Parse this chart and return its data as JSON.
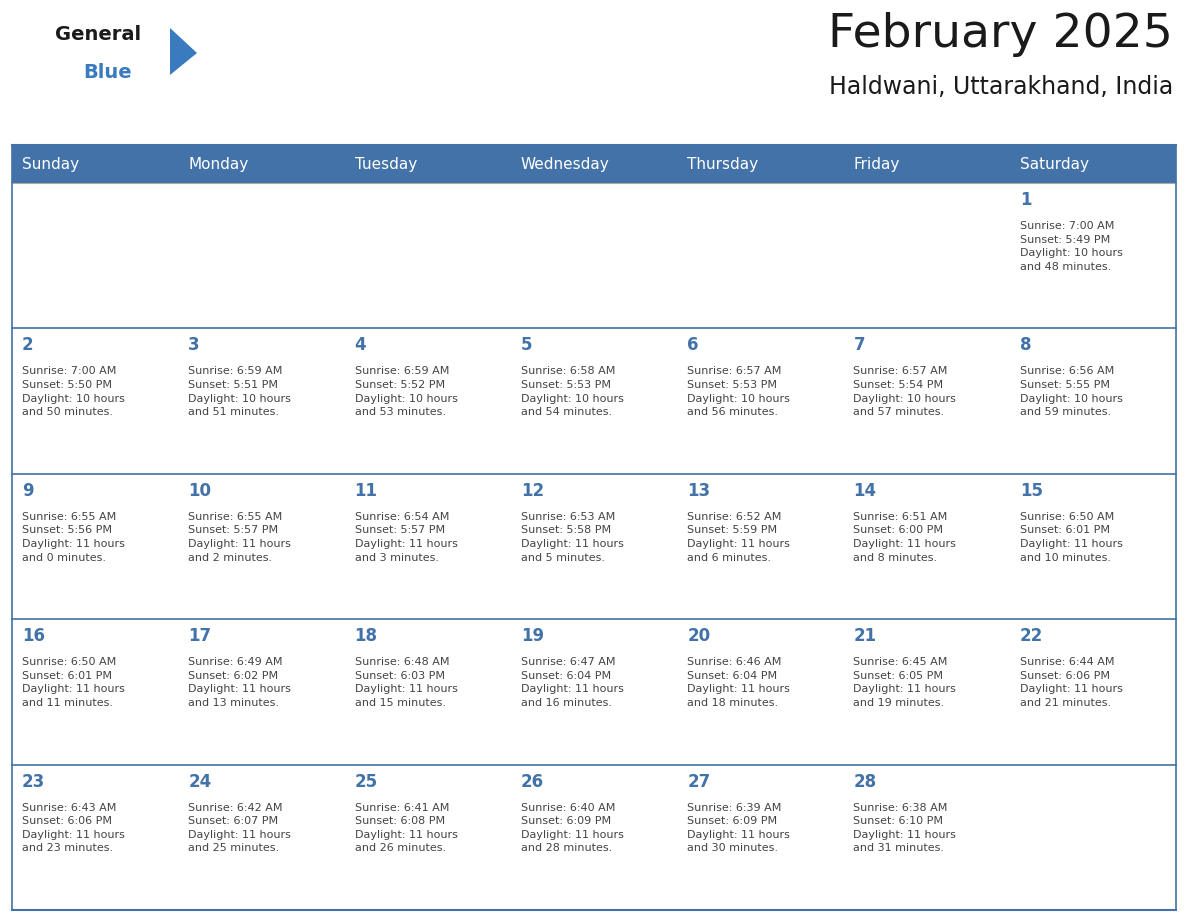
{
  "title": "February 2025",
  "subtitle": "Haldwani, Uttarakhand, India",
  "days_of_week": [
    "Sunday",
    "Monday",
    "Tuesday",
    "Wednesday",
    "Thursday",
    "Friday",
    "Saturday"
  ],
  "header_bg": "#4272a8",
  "header_text_color": "#ffffff",
  "cell_bg": "#ffffff",
  "border_color": "#4272a8",
  "day_number_color": "#4272a8",
  "info_text_color": "#444444",
  "title_color": "#1a1a1a",
  "subtitle_color": "#1a1a1a",
  "logo_general_color": "#1a1a1a",
  "logo_blue_color": "#3a7abf",
  "calendar_data": [
    [
      null,
      null,
      null,
      null,
      null,
      null,
      1
    ],
    [
      2,
      3,
      4,
      5,
      6,
      7,
      8
    ],
    [
      9,
      10,
      11,
      12,
      13,
      14,
      15
    ],
    [
      16,
      17,
      18,
      19,
      20,
      21,
      22
    ],
    [
      23,
      24,
      25,
      26,
      27,
      28,
      null
    ]
  ],
  "sun_set_rise": {
    "1": {
      "sunrise": "7:00 AM",
      "sunset": "5:49 PM",
      "daylight_h": "10 hours",
      "daylight_m": "and 48 minutes."
    },
    "2": {
      "sunrise": "7:00 AM",
      "sunset": "5:50 PM",
      "daylight_h": "10 hours",
      "daylight_m": "and 50 minutes."
    },
    "3": {
      "sunrise": "6:59 AM",
      "sunset": "5:51 PM",
      "daylight_h": "10 hours",
      "daylight_m": "and 51 minutes."
    },
    "4": {
      "sunrise": "6:59 AM",
      "sunset": "5:52 PM",
      "daylight_h": "10 hours",
      "daylight_m": "and 53 minutes."
    },
    "5": {
      "sunrise": "6:58 AM",
      "sunset": "5:53 PM",
      "daylight_h": "10 hours",
      "daylight_m": "and 54 minutes."
    },
    "6": {
      "sunrise": "6:57 AM",
      "sunset": "5:53 PM",
      "daylight_h": "10 hours",
      "daylight_m": "and 56 minutes."
    },
    "7": {
      "sunrise": "6:57 AM",
      "sunset": "5:54 PM",
      "daylight_h": "10 hours",
      "daylight_m": "and 57 minutes."
    },
    "8": {
      "sunrise": "6:56 AM",
      "sunset": "5:55 PM",
      "daylight_h": "10 hours",
      "daylight_m": "and 59 minutes."
    },
    "9": {
      "sunrise": "6:55 AM",
      "sunset": "5:56 PM",
      "daylight_h": "11 hours",
      "daylight_m": "and 0 minutes."
    },
    "10": {
      "sunrise": "6:55 AM",
      "sunset": "5:57 PM",
      "daylight_h": "11 hours",
      "daylight_m": "and 2 minutes."
    },
    "11": {
      "sunrise": "6:54 AM",
      "sunset": "5:57 PM",
      "daylight_h": "11 hours",
      "daylight_m": "and 3 minutes."
    },
    "12": {
      "sunrise": "6:53 AM",
      "sunset": "5:58 PM",
      "daylight_h": "11 hours",
      "daylight_m": "and 5 minutes."
    },
    "13": {
      "sunrise": "6:52 AM",
      "sunset": "5:59 PM",
      "daylight_h": "11 hours",
      "daylight_m": "and 6 minutes."
    },
    "14": {
      "sunrise": "6:51 AM",
      "sunset": "6:00 PM",
      "daylight_h": "11 hours",
      "daylight_m": "and 8 minutes."
    },
    "15": {
      "sunrise": "6:50 AM",
      "sunset": "6:01 PM",
      "daylight_h": "11 hours",
      "daylight_m": "and 10 minutes."
    },
    "16": {
      "sunrise": "6:50 AM",
      "sunset": "6:01 PM",
      "daylight_h": "11 hours",
      "daylight_m": "and 11 minutes."
    },
    "17": {
      "sunrise": "6:49 AM",
      "sunset": "6:02 PM",
      "daylight_h": "11 hours",
      "daylight_m": "and 13 minutes."
    },
    "18": {
      "sunrise": "6:48 AM",
      "sunset": "6:03 PM",
      "daylight_h": "11 hours",
      "daylight_m": "and 15 minutes."
    },
    "19": {
      "sunrise": "6:47 AM",
      "sunset": "6:04 PM",
      "daylight_h": "11 hours",
      "daylight_m": "and 16 minutes."
    },
    "20": {
      "sunrise": "6:46 AM",
      "sunset": "6:04 PM",
      "daylight_h": "11 hours",
      "daylight_m": "and 18 minutes."
    },
    "21": {
      "sunrise": "6:45 AM",
      "sunset": "6:05 PM",
      "daylight_h": "11 hours",
      "daylight_m": "and 19 minutes."
    },
    "22": {
      "sunrise": "6:44 AM",
      "sunset": "6:06 PM",
      "daylight_h": "11 hours",
      "daylight_m": "and 21 minutes."
    },
    "23": {
      "sunrise": "6:43 AM",
      "sunset": "6:06 PM",
      "daylight_h": "11 hours",
      "daylight_m": "and 23 minutes."
    },
    "24": {
      "sunrise": "6:42 AM",
      "sunset": "6:07 PM",
      "daylight_h": "11 hours",
      "daylight_m": "and 25 minutes."
    },
    "25": {
      "sunrise": "6:41 AM",
      "sunset": "6:08 PM",
      "daylight_h": "11 hours",
      "daylight_m": "and 26 minutes."
    },
    "26": {
      "sunrise": "6:40 AM",
      "sunset": "6:09 PM",
      "daylight_h": "11 hours",
      "daylight_m": "and 28 minutes."
    },
    "27": {
      "sunrise": "6:39 AM",
      "sunset": "6:09 PM",
      "daylight_h": "11 hours",
      "daylight_m": "and 30 minutes."
    },
    "28": {
      "sunrise": "6:38 AM",
      "sunset": "6:10 PM",
      "daylight_h": "11 hours",
      "daylight_m": "and 31 minutes."
    }
  }
}
